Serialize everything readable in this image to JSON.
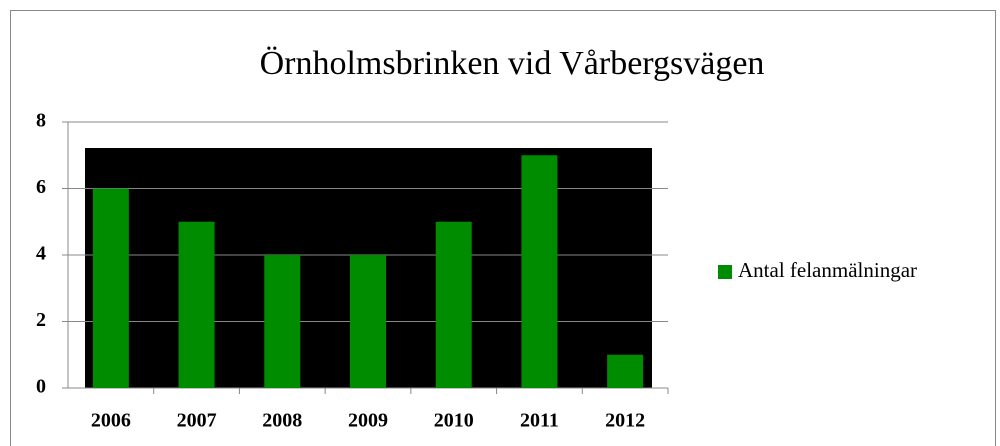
{
  "chart_data": {
    "type": "bar",
    "title": "Örnholmsbrinken vid Vårbergsvägen",
    "categories": [
      "2006",
      "2007",
      "2008",
      "2009",
      "2010",
      "2011",
      "2012"
    ],
    "series": [
      {
        "name": "Antal felanmälningar",
        "color": "#008c00",
        "values": [
          6,
          5,
          4,
          4,
          5,
          7,
          1
        ]
      }
    ],
    "ylim": [
      0,
      8
    ],
    "yticks": [
      0,
      2,
      4,
      6,
      8
    ],
    "grid": true,
    "legend": "right"
  }
}
